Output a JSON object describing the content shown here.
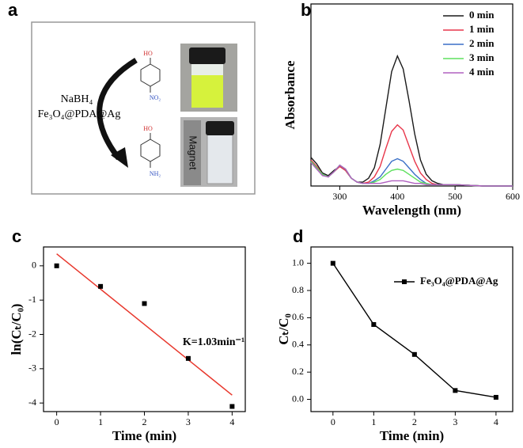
{
  "scheme": {
    "label": "a",
    "reagents": [
      "NaBH₄",
      "Fe₃O₄@PDA@Ag"
    ],
    "reactant": {
      "top": "HO",
      "bottom": "NO₂"
    },
    "product": {
      "top": "HO",
      "bottom": "NH₂"
    },
    "magnet": "Magnet"
  },
  "chart_data": [
    {
      "type": "line",
      "label": "b",
      "x_label": "Wavelength (nm)",
      "y_label": "Absorbance",
      "x": [
        250,
        260,
        270,
        280,
        290,
        300,
        310,
        320,
        330,
        340,
        350,
        360,
        370,
        380,
        390,
        400,
        410,
        420,
        430,
        440,
        450,
        460,
        470,
        480,
        500,
        550,
        600
      ],
      "xlim": [
        250,
        600
      ],
      "xticks": [
        300,
        400,
        500,
        600
      ],
      "ylim": [
        0,
        1.4
      ],
      "legend": "upper right",
      "series": [
        {
          "name": "0 min",
          "color": "#1a1a1a",
          "values": [
            0.22,
            0.17,
            0.1,
            0.08,
            0.12,
            0.15,
            0.12,
            0.06,
            0.03,
            0.03,
            0.06,
            0.14,
            0.32,
            0.6,
            0.88,
            1.0,
            0.9,
            0.66,
            0.4,
            0.2,
            0.09,
            0.04,
            0.02,
            0.01,
            0.01,
            0,
            0
          ]
        },
        {
          "name": "1 min",
          "color": "#e8374b",
          "values": [
            0.2,
            0.15,
            0.09,
            0.07,
            0.11,
            0.15,
            0.12,
            0.06,
            0.03,
            0.02,
            0.03,
            0.07,
            0.15,
            0.29,
            0.42,
            0.47,
            0.43,
            0.31,
            0.19,
            0.1,
            0.05,
            0.02,
            0.01,
            0.01,
            0.01,
            0,
            0
          ]
        },
        {
          "name": "2 min",
          "color": "#3a6fc7",
          "values": [
            0.19,
            0.14,
            0.09,
            0.07,
            0.11,
            0.16,
            0.13,
            0.06,
            0.03,
            0.02,
            0.02,
            0.04,
            0.07,
            0.13,
            0.19,
            0.21,
            0.19,
            0.14,
            0.09,
            0.05,
            0.02,
            0.01,
            0.01,
            0.01,
            0.01,
            0,
            0
          ]
        },
        {
          "name": "3 min",
          "color": "#5ee05e",
          "values": [
            0.19,
            0.14,
            0.09,
            0.07,
            0.11,
            0.16,
            0.13,
            0.06,
            0.03,
            0.02,
            0.02,
            0.03,
            0.05,
            0.09,
            0.12,
            0.13,
            0.12,
            0.09,
            0.06,
            0.03,
            0.02,
            0.01,
            0.01,
            0.01,
            0.01,
            0,
            0
          ]
        },
        {
          "name": "4 min",
          "color": "#b060c0",
          "values": [
            0.18,
            0.13,
            0.08,
            0.07,
            0.11,
            0.16,
            0.13,
            0.06,
            0.03,
            0.02,
            0.02,
            0.02,
            0.02,
            0.03,
            0.04,
            0.04,
            0.04,
            0.03,
            0.02,
            0.02,
            0.01,
            0.01,
            0.01,
            0.01,
            0.01,
            0,
            0
          ]
        }
      ]
    },
    {
      "type": "scatter",
      "label": "c",
      "x_label": "Time (min)",
      "y_label": "ln(Cₜ/C₀)",
      "x": [
        0,
        1,
        2,
        3,
        4
      ],
      "values": [
        0,
        -0.6,
        -1.1,
        -2.7,
        -4.1
      ],
      "color": "#000000",
      "marker": "square",
      "fit": {
        "x": [
          0,
          4
        ],
        "values": [
          0.35,
          -3.77
        ],
        "color": "#e8372c"
      },
      "annotation": "K=1.03min⁻¹",
      "xlim": [
        -0.3,
        4.3
      ],
      "xticks": [
        0,
        1,
        2,
        3,
        4
      ],
      "ylim": [
        -4.25,
        0.55
      ],
      "yticks": [
        0,
        -1,
        -2,
        -3,
        -4
      ]
    },
    {
      "type": "line",
      "label": "d",
      "x_label": "Time (min)",
      "y_label": "Cₜ/C₀",
      "marker": "square",
      "legend": "upper right",
      "x": [
        0,
        1,
        2,
        3,
        4
      ],
      "series": [
        {
          "name": "Fe₃O₄@PDA@Ag",
          "color": "#000000",
          "values": [
            1.0,
            0.55,
            0.33,
            0.065,
            0.015
          ]
        }
      ],
      "xlim": [
        -0.54,
        4.41
      ],
      "xticks": [
        0,
        1,
        2,
        3,
        4
      ],
      "ylim": [
        -0.09,
        1.12
      ],
      "yticks": [
        {
          "value": 0,
          "label": "0.0"
        },
        {
          "value": 0.2,
          "label": "0.2"
        },
        {
          "value": 0.4,
          "label": "0.4"
        },
        {
          "value": 0.6,
          "label": "0.6"
        },
        {
          "value": 0.8,
          "label": "0.8"
        },
        {
          "value": 1,
          "label": "1.0"
        }
      ]
    }
  ]
}
